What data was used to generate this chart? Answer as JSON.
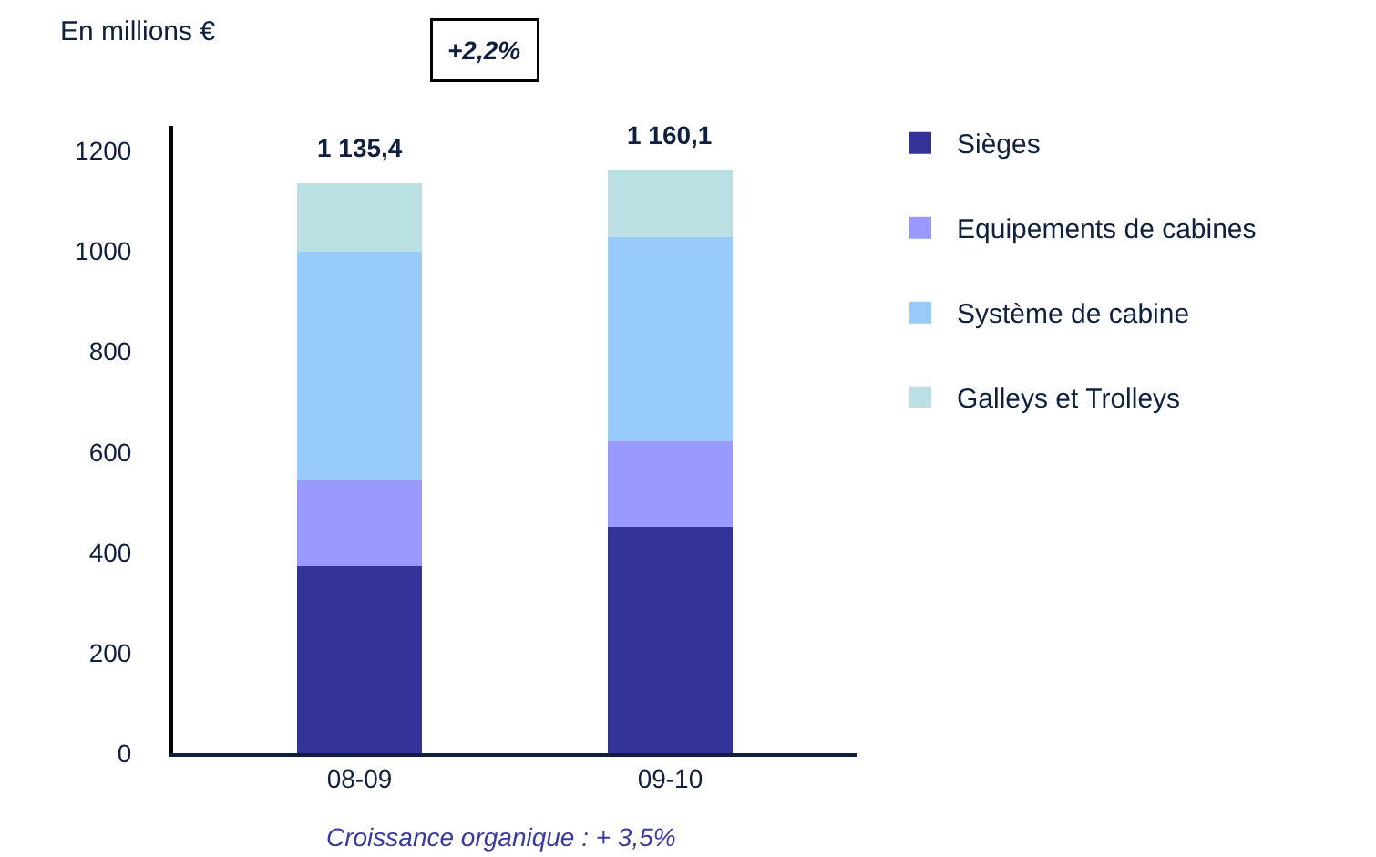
{
  "chart_data": {
    "type": "bar",
    "stacked": true,
    "ylabel": "En millions €",
    "categories": [
      "08-09",
      "09-10"
    ],
    "series": [
      {
        "name": "Sièges",
        "color": "#343397",
        "values": [
          373,
          450
        ]
      },
      {
        "name": "Equipements de cabines",
        "color": "#9a99fe",
        "values": [
          171,
          171
        ]
      },
      {
        "name": "Système de cabine",
        "color": "#99ccfe",
        "values": [
          455,
          407
        ]
      },
      {
        "name": "Galleys et Trolleys",
        "color": "#bbe0e3",
        "values": [
          136.4,
          132.1
        ]
      }
    ],
    "totals": [
      "1 135,4",
      "1 160,1"
    ],
    "ylim": [
      0,
      1250
    ],
    "yticks": [
      0,
      200,
      400,
      600,
      800,
      1000,
      1200
    ],
    "grid": false,
    "legend": "right",
    "annotations": [
      "+2,2%",
      "Croissance organique : + 3,5%"
    ]
  }
}
